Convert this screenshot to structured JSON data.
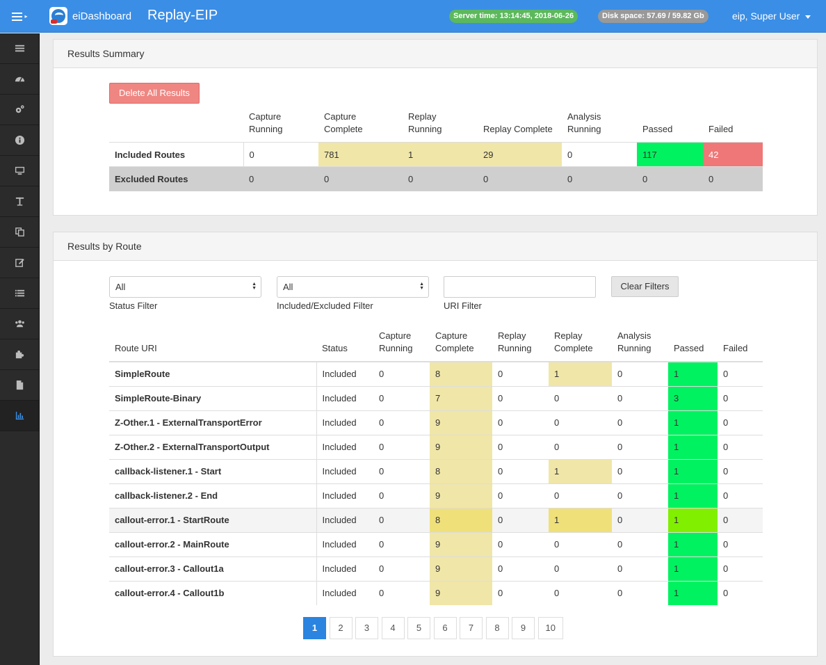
{
  "brand": {
    "name": "eiDashboard"
  },
  "page_title": "Replay-EIP",
  "server_time": "Server time: 13:14:45, 2018-06-26",
  "disk_space": "Disk space: 57.69 / 59.82 Gb",
  "user": "eip, Super User",
  "colors": {
    "topbar": "#3a8ee6",
    "passed": "#00f260",
    "failed": "#ef7777",
    "highlight": "#f0e6a8",
    "danger_button": "#ef8682"
  },
  "sidebar": {
    "icons": [
      "menu-list-icon",
      "dashboard-icon",
      "cogs-icon",
      "info-icon",
      "monitor-icon",
      "text-icon",
      "copy-icon",
      "edit-icon",
      "list-icon",
      "users-icon",
      "puzzle-icon",
      "file-icon",
      "bar-chart-icon"
    ],
    "active_index": 12
  },
  "summary": {
    "title": "Results Summary",
    "delete_button": "Delete All Results",
    "columns": [
      "Capture Running",
      "Capture Complete",
      "Replay Running",
      "Replay Complete",
      "Analysis Running",
      "Passed",
      "Failed"
    ],
    "rows": [
      {
        "label": "Included Routes",
        "values": [
          "0",
          "781",
          "1",
          "29",
          "0",
          "117",
          "42"
        ]
      },
      {
        "label": "Excluded Routes",
        "values": [
          "0",
          "0",
          "0",
          "0",
          "0",
          "0",
          "0"
        ]
      }
    ]
  },
  "routes": {
    "title": "Results by Route",
    "filters": {
      "status": {
        "value": "All",
        "label": "Status Filter"
      },
      "included": {
        "value": "All",
        "label": "Included/Excluded Filter"
      },
      "uri": {
        "value": "",
        "label": "URI Filter"
      },
      "clear_button": "Clear Filters"
    },
    "columns": [
      "Route URI",
      "Status",
      "Capture Running",
      "Capture Complete",
      "Replay Running",
      "Replay Complete",
      "Analysis Running",
      "Passed",
      "Failed"
    ],
    "rows": [
      {
        "uri": "SimpleRoute",
        "status": "Included",
        "values": [
          "0",
          "8",
          "0",
          "1",
          "0",
          "1",
          "0"
        ]
      },
      {
        "uri": "SimpleRoute-Binary",
        "status": "Included",
        "values": [
          "0",
          "7",
          "0",
          "0",
          "0",
          "3",
          "0"
        ]
      },
      {
        "uri": "Z-Other.1 - ExternalTransportError",
        "status": "Included",
        "values": [
          "0",
          "9",
          "0",
          "0",
          "0",
          "1",
          "0"
        ]
      },
      {
        "uri": "Z-Other.2 - ExternalTransportOutput",
        "status": "Included",
        "values": [
          "0",
          "9",
          "0",
          "0",
          "0",
          "1",
          "0"
        ]
      },
      {
        "uri": "callback-listener.1 - Start",
        "status": "Included",
        "values": [
          "0",
          "8",
          "0",
          "1",
          "0",
          "1",
          "0"
        ]
      },
      {
        "uri": "callback-listener.2 - End",
        "status": "Included",
        "values": [
          "0",
          "9",
          "0",
          "0",
          "0",
          "1",
          "0"
        ]
      },
      {
        "uri": "callout-error.1 - StartRoute",
        "status": "Included",
        "values": [
          "0",
          "8",
          "0",
          "1",
          "0",
          "1",
          "0"
        ]
      },
      {
        "uri": "callout-error.2 - MainRoute",
        "status": "Included",
        "values": [
          "0",
          "9",
          "0",
          "0",
          "0",
          "1",
          "0"
        ]
      },
      {
        "uri": "callout-error.3 - Callout1a",
        "status": "Included",
        "values": [
          "0",
          "9",
          "0",
          "0",
          "0",
          "1",
          "0"
        ]
      },
      {
        "uri": "callout-error.4 - Callout1b",
        "status": "Included",
        "values": [
          "0",
          "9",
          "0",
          "0",
          "0",
          "1",
          "0"
        ]
      }
    ],
    "hovered_row": 6
  },
  "pagination": {
    "pages": [
      "1",
      "2",
      "3",
      "4",
      "5",
      "6",
      "7",
      "8",
      "9",
      "10"
    ],
    "current": "1"
  }
}
